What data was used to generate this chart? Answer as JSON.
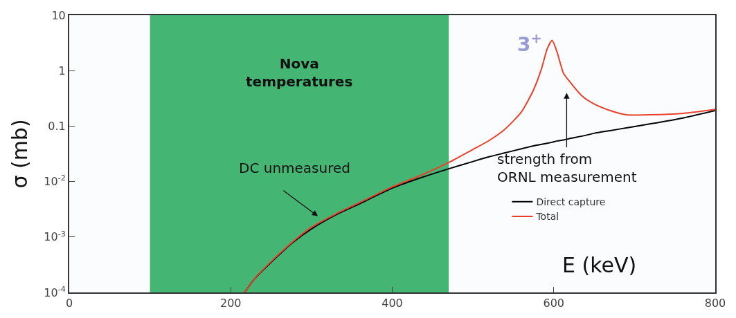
{
  "chart_data": {
    "type": "line",
    "xlabel": "E (keV)",
    "ylabel": "σ (mb)",
    "log": "y",
    "x": [
      217,
      230,
      250,
      275,
      300,
      330,
      360,
      400,
      430,
      470,
      500,
      520,
      540,
      560,
      575,
      585,
      592,
      598,
      604,
      612,
      620,
      635,
      650,
      670,
      690,
      720,
      760,
      800
    ],
    "series": [
      {
        "name": "Direct capture",
        "color": "#000000",
        "values": [
          0.0001,
          0.00018,
          0.00035,
          0.00076,
          0.0014,
          0.0025,
          0.004,
          0.0076,
          0.011,
          0.017,
          0.023,
          0.028,
          0.033,
          0.039,
          0.044,
          0.047,
          0.049,
          0.051,
          0.054,
          0.056,
          0.06,
          0.066,
          0.074,
          0.083,
          0.093,
          0.11,
          0.14,
          0.19
        ]
      },
      {
        "name": "Total",
        "color": "#e8402a",
        "values": [
          0.0001,
          0.00018,
          0.00036,
          0.00078,
          0.0015,
          0.0026,
          0.0042,
          0.008,
          0.012,
          0.022,
          0.038,
          0.055,
          0.089,
          0.18,
          0.45,
          1.1,
          2.5,
          3.5,
          2.2,
          0.9,
          0.63,
          0.35,
          0.25,
          0.19,
          0.16,
          0.16,
          0.17,
          0.2
        ]
      }
    ],
    "xlim": [
      0,
      800
    ],
    "xticks": [
      0,
      200,
      400,
      600,
      800
    ],
    "ylim": [
      0.0001,
      10
    ],
    "yticks": [
      {
        "value": 0.0001,
        "label": "10$^{-4}$"
      },
      {
        "value": 0.001,
        "label": "10$^{-3}$"
      },
      {
        "value": 0.01,
        "label": "10$^{-2}$"
      },
      0.1,
      1,
      10
    ],
    "bands": [
      {
        "axis": "x",
        "from": 100,
        "to": 470,
        "label": "Nova temperatures",
        "color": "#45b574"
      }
    ],
    "annotations": [
      "DC unmeasured",
      "strength from ORNL measurement",
      {
        "text": "3$^{+}$",
        "x": 598,
        "y": 3.5
      }
    ],
    "legend": "right",
    "grid": false,
    "marker": "none",
    "line_style": "solid"
  }
}
